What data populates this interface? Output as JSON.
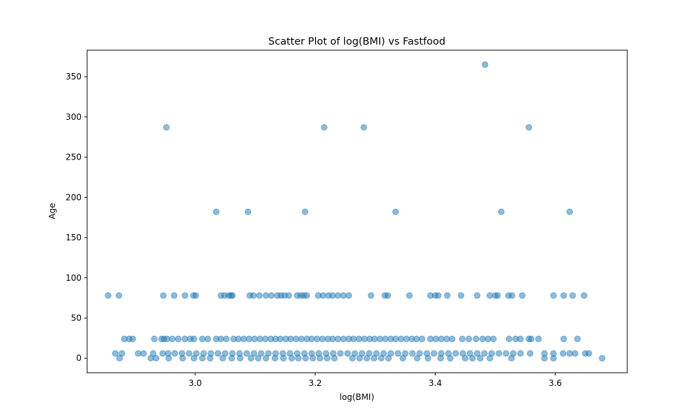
{
  "chart_data": {
    "type": "scatter",
    "title": "Scatter Plot of log(BMI) vs Fastfood",
    "xlabel": "log(BMI)",
    "ylabel": "Age",
    "xlim": [
      2.82,
      3.72
    ],
    "ylim": [
      -18,
      383
    ],
    "xticks": [
      3.0,
      3.2,
      3.4,
      3.6
    ],
    "xtick_labels": [
      "3.0",
      "3.2",
      "3.4",
      "3.6"
    ],
    "yticks": [
      0,
      50,
      100,
      150,
      200,
      250,
      300,
      350
    ],
    "ytick_labels": [
      "0",
      "50",
      "100",
      "150",
      "200",
      "250",
      "300",
      "350"
    ],
    "grid": false,
    "marker_color": "#1f77b4",
    "marker_alpha": 0.5,
    "series": [
      {
        "points": [
          [
            3.483,
            365
          ],
          [
            2.952,
            287
          ],
          [
            3.215,
            287
          ],
          [
            3.281,
            287
          ],
          [
            3.556,
            287
          ],
          [
            3.035,
            182
          ],
          [
            3.088,
            182
          ],
          [
            3.183,
            182
          ],
          [
            3.334,
            182
          ],
          [
            3.51,
            182
          ],
          [
            3.624,
            182
          ],
          [
            2.855,
            78
          ],
          [
            2.873,
            78
          ],
          [
            2.947,
            78
          ],
          [
            2.965,
            78
          ],
          [
            2.983,
            78
          ],
          [
            2.997,
            78
          ],
          [
            3.001,
            78
          ],
          [
            3.043,
            78
          ],
          [
            3.049,
            78
          ],
          [
            3.056,
            78
          ],
          [
            3.06,
            78
          ],
          [
            3.062,
            78
          ],
          [
            3.091,
            78
          ],
          [
            3.097,
            78
          ],
          [
            3.107,
            78
          ],
          [
            3.118,
            78
          ],
          [
            3.127,
            78
          ],
          [
            3.137,
            78
          ],
          [
            3.143,
            78
          ],
          [
            3.149,
            78
          ],
          [
            3.156,
            78
          ],
          [
            3.17,
            78
          ],
          [
            3.176,
            78
          ],
          [
            3.181,
            78
          ],
          [
            3.186,
            78
          ],
          [
            3.205,
            78
          ],
          [
            3.213,
            78
          ],
          [
            3.222,
            78
          ],
          [
            3.229,
            78
          ],
          [
            3.238,
            78
          ],
          [
            3.247,
            78
          ],
          [
            3.256,
            78
          ],
          [
            3.293,
            78
          ],
          [
            3.316,
            78
          ],
          [
            3.321,
            78
          ],
          [
            3.357,
            78
          ],
          [
            3.392,
            78
          ],
          [
            3.4,
            78
          ],
          [
            3.405,
            78
          ],
          [
            3.42,
            78
          ],
          [
            3.443,
            78
          ],
          [
            3.47,
            78
          ],
          [
            3.491,
            78
          ],
          [
            3.5,
            78
          ],
          [
            3.504,
            78
          ],
          [
            3.522,
            78
          ],
          [
            3.528,
            78
          ],
          [
            3.545,
            78
          ],
          [
            3.597,
            78
          ],
          [
            3.614,
            78
          ],
          [
            3.629,
            78
          ],
          [
            3.648,
            78
          ],
          [
            2.882,
            24
          ],
          [
            2.89,
            24
          ],
          [
            2.896,
            24
          ],
          [
            2.932,
            24
          ],
          [
            2.944,
            24
          ],
          [
            2.948,
            24
          ],
          [
            2.953,
            24
          ],
          [
            2.962,
            24
          ],
          [
            2.972,
            24
          ],
          [
            2.983,
            24
          ],
          [
            2.992,
            24
          ],
          [
            2.998,
            24
          ],
          [
            3.012,
            24
          ],
          [
            3.021,
            24
          ],
          [
            3.035,
            24
          ],
          [
            3.043,
            24
          ],
          [
            3.052,
            24
          ],
          [
            3.064,
            24
          ],
          [
            3.072,
            24
          ],
          [
            3.081,
            24
          ],
          [
            3.09,
            24
          ],
          [
            3.099,
            24
          ],
          [
            3.108,
            24
          ],
          [
            3.117,
            24
          ],
          [
            3.126,
            24
          ],
          [
            3.134,
            24
          ],
          [
            3.142,
            24
          ],
          [
            3.151,
            24
          ],
          [
            3.159,
            24
          ],
          [
            3.168,
            24
          ],
          [
            3.177,
            24
          ],
          [
            3.186,
            24
          ],
          [
            3.194,
            24
          ],
          [
            3.203,
            24
          ],
          [
            3.212,
            24
          ],
          [
            3.221,
            24
          ],
          [
            3.229,
            24
          ],
          [
            3.238,
            24
          ],
          [
            3.247,
            24
          ],
          [
            3.256,
            24
          ],
          [
            3.264,
            24
          ],
          [
            3.273,
            24
          ],
          [
            3.282,
            24
          ],
          [
            3.291,
            24
          ],
          [
            3.299,
            24
          ],
          [
            3.308,
            24
          ],
          [
            3.317,
            24
          ],
          [
            3.326,
            24
          ],
          [
            3.334,
            24
          ],
          [
            3.343,
            24
          ],
          [
            3.352,
            24
          ],
          [
            3.361,
            24
          ],
          [
            3.369,
            24
          ],
          [
            3.378,
            24
          ],
          [
            3.392,
            24
          ],
          [
            3.401,
            24
          ],
          [
            3.41,
            24
          ],
          [
            3.419,
            24
          ],
          [
            3.428,
            24
          ],
          [
            3.445,
            24
          ],
          [
            3.456,
            24
          ],
          [
            3.468,
            24
          ],
          [
            3.479,
            24
          ],
          [
            3.488,
            24
          ],
          [
            3.497,
            24
          ],
          [
            3.523,
            24
          ],
          [
            3.534,
            24
          ],
          [
            3.542,
            24
          ],
          [
            3.556,
            24
          ],
          [
            3.56,
            24
          ],
          [
            3.572,
            24
          ],
          [
            3.614,
            24
          ],
          [
            3.637,
            24
          ],
          [
            2.867,
            6
          ],
          [
            2.878,
            6
          ],
          [
            2.905,
            6
          ],
          [
            2.914,
            6
          ],
          [
            2.93,
            6
          ],
          [
            2.946,
            6
          ],
          [
            2.955,
            6
          ],
          [
            2.966,
            6
          ],
          [
            2.978,
            6
          ],
          [
            2.99,
            6
          ],
          [
            3.002,
            6
          ],
          [
            3.014,
            6
          ],
          [
            3.026,
            6
          ],
          [
            3.038,
            6
          ],
          [
            3.05,
            6
          ],
          [
            3.062,
            6
          ],
          [
            3.074,
            6
          ],
          [
            3.086,
            6
          ],
          [
            3.098,
            6
          ],
          [
            3.11,
            6
          ],
          [
            3.122,
            6
          ],
          [
            3.134,
            6
          ],
          [
            3.146,
            6
          ],
          [
            3.158,
            6
          ],
          [
            3.17,
            6
          ],
          [
            3.182,
            6
          ],
          [
            3.194,
            6
          ],
          [
            3.206,
            6
          ],
          [
            3.218,
            6
          ],
          [
            3.23,
            6
          ],
          [
            3.242,
            6
          ],
          [
            3.254,
            6
          ],
          [
            3.266,
            6
          ],
          [
            3.278,
            6
          ],
          [
            3.29,
            6
          ],
          [
            3.302,
            6
          ],
          [
            3.314,
            6
          ],
          [
            3.326,
            6
          ],
          [
            3.338,
            6
          ],
          [
            3.35,
            6
          ],
          [
            3.362,
            6
          ],
          [
            3.374,
            6
          ],
          [
            3.386,
            6
          ],
          [
            3.398,
            6
          ],
          [
            3.41,
            6
          ],
          [
            3.422,
            6
          ],
          [
            3.434,
            6
          ],
          [
            3.446,
            6
          ],
          [
            3.458,
            6
          ],
          [
            3.47,
            6
          ],
          [
            3.482,
            6
          ],
          [
            3.494,
            6
          ],
          [
            3.506,
            6
          ],
          [
            3.518,
            6
          ],
          [
            3.53,
            6
          ],
          [
            3.542,
            6
          ],
          [
            3.558,
            6
          ],
          [
            3.582,
            6
          ],
          [
            3.597,
            6
          ],
          [
            3.613,
            6
          ],
          [
            3.624,
            6
          ],
          [
            3.633,
            6
          ],
          [
            3.65,
            6
          ],
          [
            3.656,
            6
          ],
          [
            2.874,
            0
          ],
          [
            2.926,
            0
          ],
          [
            2.935,
            0
          ],
          [
            2.956,
            0
          ],
          [
            2.979,
            0
          ],
          [
            2.998,
            0
          ],
          [
            3.012,
            0
          ],
          [
            3.025,
            0
          ],
          [
            3.046,
            0
          ],
          [
            3.061,
            0
          ],
          [
            3.075,
            0
          ],
          [
            3.093,
            0
          ],
          [
            3.105,
            0
          ],
          [
            3.118,
            0
          ],
          [
            3.133,
            0
          ],
          [
            3.147,
            0
          ],
          [
            3.161,
            0
          ],
          [
            3.172,
            0
          ],
          [
            3.184,
            0
          ],
          [
            3.196,
            0
          ],
          [
            3.208,
            0
          ],
          [
            3.22,
            0
          ],
          [
            3.232,
            0
          ],
          [
            3.262,
            0
          ],
          [
            3.274,
            0
          ],
          [
            3.286,
            0
          ],
          [
            3.298,
            0
          ],
          [
            3.31,
            0
          ],
          [
            3.322,
            0
          ],
          [
            3.346,
            0
          ],
          [
            3.37,
            0
          ],
          [
            3.388,
            0
          ],
          [
            3.409,
            0
          ],
          [
            3.425,
            0
          ],
          [
            3.45,
            0
          ],
          [
            3.462,
            0
          ],
          [
            3.475,
            0
          ],
          [
            3.491,
            0
          ],
          [
            3.527,
            0
          ],
          [
            3.582,
            0
          ],
          [
            3.597,
            0
          ],
          [
            3.678,
            0
          ]
        ]
      }
    ]
  }
}
